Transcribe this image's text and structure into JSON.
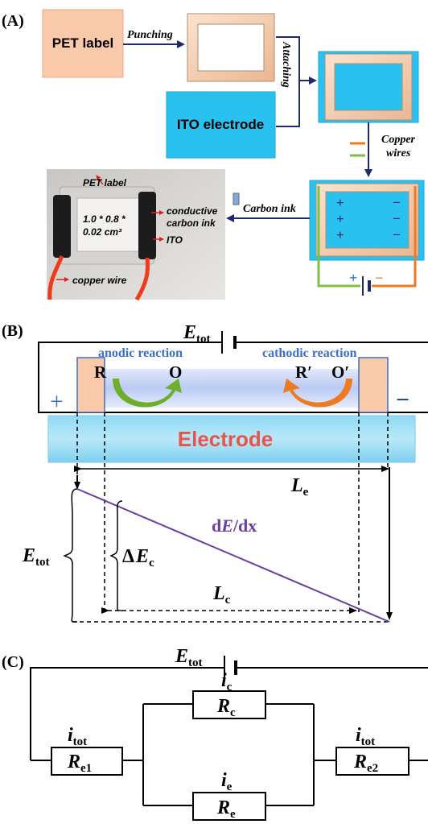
{
  "panel_a": {
    "label": "(A)",
    "pet_label": "PET label",
    "punching": "Punching",
    "attaching": "Attaching",
    "ito_electrode": "ITO electrode",
    "copper_wires": [
      "Copper",
      "wires"
    ],
    "carbon_ink": "Carbon ink",
    "plus": "+",
    "minus": "−",
    "photo": {
      "pet_label": "PET label",
      "dimensions": [
        "1.0 * 0.8 *",
        "0.02 cm³"
      ],
      "conductive_carbon_ink": [
        "conductive",
        "carbon ink"
      ],
      "ito": "ITO",
      "copper_wire": "copper wire"
    },
    "colors": {
      "pet": "#f9c9a9",
      "ito": "#29c1f0",
      "navy": "#1f2a6b",
      "copper": "#f07a1e",
      "green": "#7fbf45"
    }
  },
  "panel_b": {
    "label": "(B)",
    "e_tot": {
      "main": "E",
      "sub": "tot"
    },
    "anodic_reaction": "anodic reaction",
    "cathodic_reaction": "cathodic reaction",
    "r": "R",
    "o": "O",
    "r_prime": "R′",
    "o_prime": "O′",
    "plus": "+",
    "minus": "−",
    "electrode": "Electrode",
    "l_e": {
      "main": "L",
      "sub": "e"
    },
    "l_c": {
      "main": "L",
      "sub": "c"
    },
    "delta_e_c": {
      "delta": "Δ",
      "main": "E",
      "sub": "c"
    },
    "gradient": {
      "pre": "d",
      "main": "E",
      "post": "/dx"
    },
    "colors": {
      "line": "#6a3fa0",
      "label_blue": "#3d6fc4",
      "electrode_text": "#e8534a",
      "green_arrow": "#6fae2a",
      "orange_arrow": "#f07a22"
    }
  },
  "panel_c": {
    "label": "(C)",
    "e_tot": {
      "main": "E",
      "sub": "tot"
    },
    "i_tot_left": {
      "main": "i",
      "sub": "tot"
    },
    "r_e1": {
      "main": "R",
      "sub": "e1"
    },
    "i_c": {
      "main": "i",
      "sub": "c"
    },
    "r_c": {
      "main": "R",
      "sub": "c"
    },
    "i_e": {
      "main": "i",
      "sub": "e"
    },
    "r_e": {
      "main": "R",
      "sub": "e"
    },
    "i_tot_right": {
      "main": "i",
      "sub": "tot"
    },
    "r_e2": {
      "main": "R",
      "sub": "e2"
    }
  }
}
